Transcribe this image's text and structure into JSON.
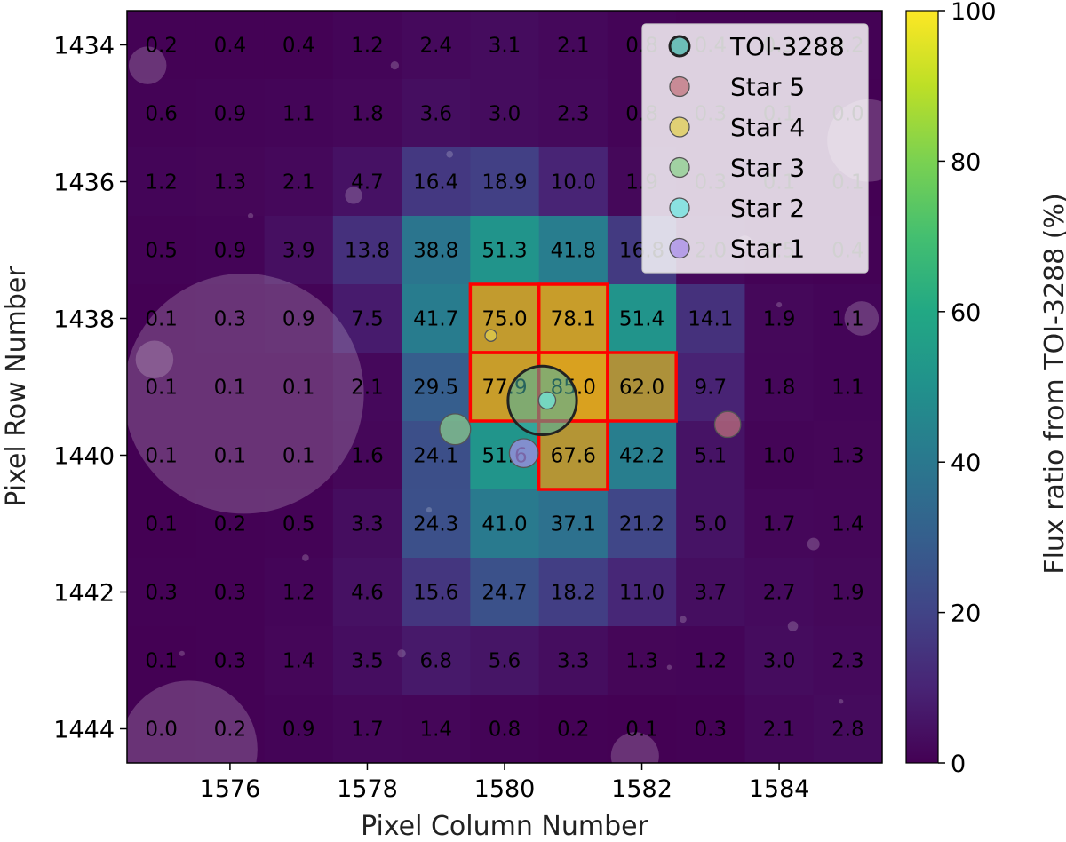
{
  "chart_data": {
    "type": "heatmap",
    "title": "",
    "xlabel": "Pixel Column Number",
    "ylabel": "Pixel Row Number",
    "colorbar_label": "Flux ratio from TOI-3288 (%)",
    "colormap": "viridis",
    "clim": [
      0,
      100
    ],
    "x_columns": [
      1575,
      1576,
      1577,
      1578,
      1579,
      1580,
      1581,
      1582,
      1583,
      1584,
      1585
    ],
    "y_rows": [
      1434,
      1435,
      1436,
      1437,
      1438,
      1439,
      1440,
      1441,
      1442,
      1443,
      1444
    ],
    "xlim": [
      1574.5,
      1585.5
    ],
    "ylim": [
      1444.5,
      1433.5
    ],
    "x_tick_labels": [
      "1576",
      "1578",
      "1580",
      "1582",
      "1584"
    ],
    "y_tick_labels": [
      "1434",
      "1436",
      "1438",
      "1440",
      "1442",
      "1444"
    ],
    "colorbar_ticks": [
      "0",
      "20",
      "40",
      "60",
      "80",
      "100"
    ],
    "values": [
      [
        "0.2",
        "0.4",
        "0.4",
        "1.2",
        "2.4",
        "3.1",
        "2.1",
        "0.8",
        "0.4",
        "0.3",
        "0.2"
      ],
      [
        "0.6",
        "0.9",
        "1.1",
        "1.8",
        "3.6",
        "3.0",
        "2.3",
        "0.8",
        "0.3",
        "0.1",
        "0.0"
      ],
      [
        "1.2",
        "1.3",
        "2.1",
        "4.7",
        "16.4",
        "18.9",
        "10.0",
        "1.9",
        "0.3",
        "0.1",
        "0.1"
      ],
      [
        "0.5",
        "0.9",
        "3.9",
        "13.8",
        "38.8",
        "51.3",
        "41.8",
        "16.8",
        "2.0",
        "0.5",
        "0.4"
      ],
      [
        "0.1",
        "0.3",
        "0.9",
        "7.5",
        "41.7",
        "75.0",
        "78.1",
        "51.4",
        "14.1",
        "1.9",
        "1.1"
      ],
      [
        "0.1",
        "0.1",
        "0.1",
        "2.1",
        "29.5",
        "77.9",
        "85.0",
        "62.0",
        "9.7",
        "1.8",
        "1.1"
      ],
      [
        "0.1",
        "0.1",
        "0.1",
        "1.6",
        "24.1",
        "51.6",
        "67.6",
        "42.2",
        "5.1",
        "1.0",
        "1.3"
      ],
      [
        "0.1",
        "0.2",
        "0.5",
        "3.3",
        "24.3",
        "41.0",
        "37.1",
        "21.2",
        "5.0",
        "1.7",
        "1.4"
      ],
      [
        "0.3",
        "0.3",
        "1.2",
        "4.6",
        "15.6",
        "24.7",
        "18.2",
        "11.0",
        "3.7",
        "2.7",
        "1.9"
      ],
      [
        "0.1",
        "0.3",
        "1.4",
        "3.5",
        "6.8",
        "5.6",
        "3.3",
        "1.3",
        "1.2",
        "3.0",
        "2.3"
      ],
      [
        "0.0",
        "0.2",
        "0.9",
        "1.7",
        "1.4",
        "0.8",
        "0.2",
        "0.1",
        "0.3",
        "2.1",
        "2.8"
      ]
    ],
    "aperture_pixels": [
      {
        "col": 1580,
        "row": 1438
      },
      {
        "col": 1581,
        "row": 1438
      },
      {
        "col": 1580,
        "row": 1439
      },
      {
        "col": 1581,
        "row": 1439
      },
      {
        "col": 1582,
        "row": 1439
      },
      {
        "col": 1581,
        "row": 1440
      }
    ],
    "aperture_color": "#ff0000",
    "stars": [
      {
        "name": "TOI-3288",
        "col": 1580.55,
        "row": 1439.2,
        "size": 1.0,
        "color": "#45b5a9"
      },
      {
        "name": "Star 5",
        "col": 1583.25,
        "row": 1439.55,
        "size": 0.38,
        "color": "#c0737e"
      },
      {
        "name": "Star 4",
        "col": 1579.8,
        "row": 1438.25,
        "size": 0.17,
        "color": "#e0cf52"
      },
      {
        "name": "Star 3",
        "col": 1579.28,
        "row": 1439.62,
        "size": 0.45,
        "color": "#8cd08e"
      },
      {
        "name": "Star 2",
        "col": 1580.62,
        "row": 1439.2,
        "size": 0.25,
        "color": "#6ee6e0"
      },
      {
        "name": "Star 1",
        "col": 1580.28,
        "row": 1439.97,
        "size": 0.42,
        "color": "#a88ee8"
      }
    ],
    "background_sources": [
      {
        "col": 1576.2,
        "row": 1439.1,
        "size": 3.5
      },
      {
        "col": 1575.4,
        "row": 1444.3,
        "size": 2.0
      },
      {
        "col": 1585.3,
        "row": 1435.4,
        "size": 1.2
      },
      {
        "col": 1581.9,
        "row": 1444.4,
        "size": 0.7
      },
      {
        "col": 1585.2,
        "row": 1438.0,
        "size": 0.5
      },
      {
        "col": 1574.8,
        "row": 1434.3,
        "size": 0.55
      },
      {
        "col": 1574.9,
        "row": 1438.6,
        "size": 0.55
      },
      {
        "col": 1577.8,
        "row": 1436.2,
        "size": 0.25
      },
      {
        "col": 1583.5,
        "row": 1436.9,
        "size": 0.22
      },
      {
        "col": 1584.5,
        "row": 1441.3,
        "size": 0.18
      },
      {
        "col": 1584.2,
        "row": 1442.5,
        "size": 0.15
      },
      {
        "col": 1578.5,
        "row": 1442.9,
        "size": 0.12
      },
      {
        "col": 1578.4,
        "row": 1434.3,
        "size": 0.12
      },
      {
        "col": 1577.1,
        "row": 1441.5,
        "size": 0.1
      },
      {
        "col": 1579.2,
        "row": 1435.6,
        "size": 0.1
      },
      {
        "col": 1582.6,
        "row": 1442.4,
        "size": 0.1
      },
      {
        "col": 1576.3,
        "row": 1436.5,
        "size": 0.08
      },
      {
        "col": 1575.3,
        "row": 1442.9,
        "size": 0.08
      },
      {
        "col": 1584.0,
        "row": 1437.8,
        "size": 0.08
      },
      {
        "col": 1578.9,
        "row": 1440.8,
        "size": 0.08
      },
      {
        "col": 1582.4,
        "row": 1443.1,
        "size": 0.07
      },
      {
        "col": 1584.9,
        "row": 1443.6,
        "size": 0.07
      }
    ],
    "legend": {
      "position": "top-right",
      "entries": [
        "TOI-3288",
        "Star 5",
        "Star 4",
        "Star 3",
        "Star 2",
        "Star 1"
      ]
    }
  }
}
